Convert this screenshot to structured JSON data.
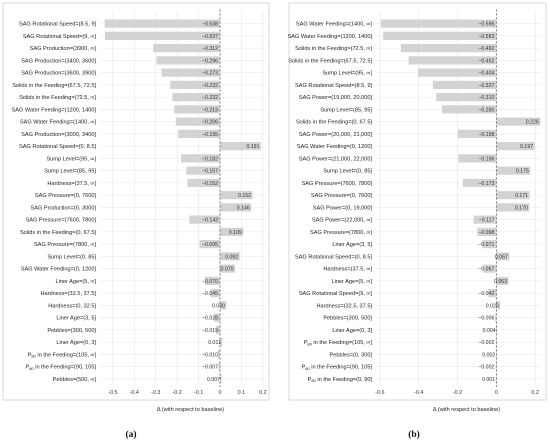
{
  "chart_data": [
    {
      "type": "bar",
      "orientation": "horizontal",
      "caption": "(a)",
      "xlabel": "Δ (with respect to baseline)",
      "xlim": [
        -0.56,
        0.21
      ],
      "xticks": [
        "-0.5",
        "-0.4",
        "-0.3",
        "-0.2",
        "-0.1",
        "0",
        "0.1",
        "0.2"
      ],
      "xtick_values": [
        -0.5,
        -0.4,
        -0.3,
        -0.2,
        -0.1,
        0,
        0.1,
        0.2
      ],
      "grid": true,
      "categories": [
        "SAG Rotational Speed=(8.5, 9]",
        "SAG Rotational Speed=(9, ∞]",
        "SAG Production=(3900, ∞]",
        "SAG Production=(3400, 3600]",
        "SAG Production=(3600, 3900]",
        "Solids in the Feeding=(67.5, 72.5]",
        "Solids in the Feeding=(72.5, ∞]",
        "SAG Water Feeding=(1200, 1400]",
        "SAG Water Feeding=(1400, ∞]",
        "SAG Production=(3000, 3400]",
        "SAG Rotational Speed=(0, 8.5]",
        "Sump Level=(95, ∞]",
        "Sump Level=(85, 95]",
        "Hardness=(37.5, ∞]",
        "SAG Pressure=(0, 7600]",
        "SAG Production=(0, 3000]",
        "SAG Pressure=(7600, 7800]",
        "Solids in the Feeding=(0, 67.5]",
        "SAG Pressure=(7800, ∞]",
        "Sump Level=(0, 85]",
        "SAG Water Feeding=(0, 1200]",
        "Liner Age=(5, ∞]",
        "Hardness=(32.5, 37.5]",
        "Hardness=(0, 32.5]",
        "Liner Age=(3, 5]",
        "Pebbles=(300, 500]",
        "Liner Age=(0, 3]",
        "P80 in the Feeding=(105, ∞]",
        "P80 in the Feeding=(90, 105]",
        "Pebbles=(500, ∞]"
      ],
      "values": [
        -0.538,
        -0.537,
        -0.312,
        -0.296,
        -0.273,
        -0.232,
        -0.222,
        -0.213,
        -0.206,
        -0.195,
        0.191,
        -0.182,
        -0.157,
        -0.152,
        0.152,
        0.146,
        -0.143,
        0.109,
        -0.095,
        0.092,
        0.07,
        -0.07,
        -0.045,
        0.03,
        -0.028,
        -0.019,
        0.011,
        -0.01,
        -0.007,
        0.007
      ],
      "value_labels": [
        "−0.538",
        "−0.537",
        "−0.312",
        "−0.296",
        "−0.273",
        "−0.232",
        "−0.222",
        "−0.213",
        "−0.206",
        "−0.195",
        "0.191",
        "−0.182",
        "−0.157",
        "−0.152",
        "0.152",
        "0.146",
        "−0.143",
        "0.109",
        "−0.095",
        "0.092",
        "0.070",
        "−0.070",
        "−0.045",
        "0.030",
        "−0.028",
        "−0.019",
        "0.011",
        "−0.010",
        "−0.007",
        "0.007"
      ]
    },
    {
      "type": "bar",
      "orientation": "horizontal",
      "caption": "(b)",
      "xlabel": "Δ (with respect to baseline)",
      "xlim": [
        -0.62,
        0.23
      ],
      "xticks": [
        "-0.6",
        "-0.4",
        "-0.2",
        "0",
        "0.2"
      ],
      "xtick_values": [
        -0.6,
        -0.4,
        -0.2,
        0,
        0.2
      ],
      "grid": true,
      "categories": [
        "SAG Water Feeding=(1400, ∞]",
        "SAG Water Feeding=(1200, 1400]",
        "Solids in the Feeding=(72.5, ∞]",
        "Solids in the Feeding=(67.5, 72.5]",
        "Sump Level=(95, ∞]",
        "SAG Rotational Speed=(8.5, 9]",
        "SAG Power=(19,000, 20,000]",
        "Sump Level=(85, 95]",
        "Solids in the Feeding=(0, 67.5]",
        "SAG Power=(20,000, 21,000]",
        "SAG Water Feeding=(0, 1200]",
        "SAG Power=(21,000, 22,000]",
        "Sump Level=(0, 85]",
        "SAG Pressure=(7600, 7800]",
        "SAG Pressure=(0, 7600]",
        "SAG Power=(0, 19,000]",
        "SAG Power=(22,000, ∞]",
        "SAG Pressure=(7800, ∞]",
        "Liner Age=(3, 5]",
        "SAG Rotational Speed=(0, 8.5]",
        "Hardness=(37.5, ∞]",
        "Liner Age=(5, ∞]",
        "SAG Rotational Speed=(9, ∞]",
        "Hardness=(32.5, 37.5]",
        "Pebbles=(300, 500]",
        "Liner Age=(0, 3]",
        "P80 in the Feeding=(105, ∞]",
        "Pebbles=(0, 300]",
        "P80 in the Feeding=(90, 105]",
        "P80 in the Feeding=(0, 90]"
      ],
      "values": [
        -0.595,
        -0.583,
        -0.492,
        -0.452,
        -0.404,
        -0.327,
        -0.31,
        -0.28,
        0.226,
        -0.198,
        0.197,
        -0.196,
        0.175,
        -0.173,
        0.171,
        0.17,
        -0.117,
        -0.098,
        -0.071,
        0.067,
        -0.067,
        0.063,
        -0.042,
        0.02,
        -0.006,
        0.004,
        -0.002,
        0.002,
        -0.002,
        0.001
      ],
      "value_labels": [
        "−0.595",
        "−0.583",
        "−0.492",
        "−0.452",
        "−0.404",
        "−0.327",
        "−0.310",
        "−0.280",
        "0.226",
        "−0.198",
        "0.197",
        "−0.196",
        "0.175",
        "−0.173",
        "0.171",
        "0.170",
        "−0.117",
        "−0.098",
        "−0.071",
        "0.067",
        "−0.067",
        "0.063",
        "−0.042",
        "0.020",
        "−0.006",
        "0.004",
        "−0.002",
        "0.002",
        "−0.002",
        "0.001"
      ]
    }
  ]
}
